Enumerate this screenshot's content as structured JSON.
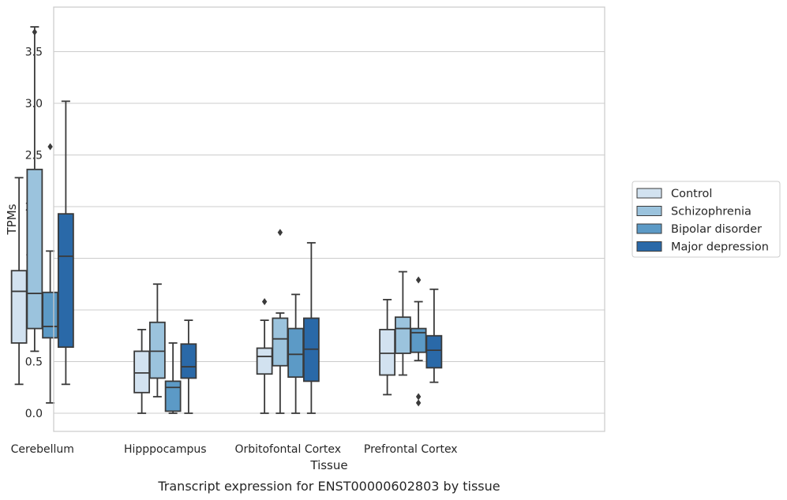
{
  "chart_data": {
    "type": "box",
    "xlabel": "Tissue",
    "ylabel": "TPMs",
    "caption": "Transcript expression for ENST00000602803 by tissue",
    "ylim": [
      -0.18,
      3.9
    ],
    "yticks": [
      "0.0",
      "0.5",
      "1.0",
      "1.5",
      "2.0",
      "2.5",
      "3.0",
      "3.5"
    ],
    "grid": "horizontal",
    "legend_position": "right",
    "categories": [
      "Cerebellum",
      "Hipppocampus",
      "Orbitofontal Cortex",
      "Prefrontal Cortex"
    ],
    "series": [
      {
        "name": "Control",
        "color": "#d2e2f0",
        "boxes": [
          {
            "whislo": 0.28,
            "q1": 0.68,
            "med": 1.18,
            "q3": 1.38,
            "whishi": 2.28,
            "fliers": []
          },
          {
            "whislo": 0.0,
            "q1": 0.2,
            "med": 0.39,
            "q3": 0.6,
            "whishi": 0.81,
            "fliers": []
          },
          {
            "whislo": 0.0,
            "q1": 0.38,
            "med": 0.55,
            "q3": 0.63,
            "whishi": 0.9,
            "fliers": [
              1.08
            ]
          },
          {
            "whislo": 0.18,
            "q1": 0.37,
            "med": 0.58,
            "q3": 0.81,
            "whishi": 1.1,
            "fliers": []
          }
        ]
      },
      {
        "name": "Schizophrenia",
        "color": "#9bc3dd",
        "boxes": [
          {
            "whislo": 0.6,
            "q1": 0.82,
            "med": 1.16,
            "q3": 2.36,
            "whishi": 3.74,
            "fliers": [
              3.69
            ]
          },
          {
            "whislo": 0.16,
            "q1": 0.34,
            "med": 0.6,
            "q3": 0.88,
            "whishi": 1.25,
            "fliers": []
          },
          {
            "whislo": 0.0,
            "q1": 0.46,
            "med": 0.72,
            "q3": 0.92,
            "whishi": 0.97,
            "fliers": [
              1.75
            ]
          },
          {
            "whislo": 0.37,
            "q1": 0.58,
            "med": 0.82,
            "q3": 0.93,
            "whishi": 1.37,
            "fliers": []
          }
        ]
      },
      {
        "name": "Bipolar disorder",
        "color": "#5c9ac6",
        "boxes": [
          {
            "whislo": 0.1,
            "q1": 0.73,
            "med": 0.84,
            "q3": 1.17,
            "whishi": 1.57,
            "fliers": [
              2.58
            ]
          },
          {
            "whislo": 0.0,
            "q1": 0.02,
            "med": 0.25,
            "q3": 0.31,
            "whishi": 0.68,
            "fliers": []
          },
          {
            "whislo": 0.0,
            "q1": 0.35,
            "med": 0.57,
            "q3": 0.82,
            "whishi": 1.15,
            "fliers": []
          },
          {
            "whislo": 0.51,
            "q1": 0.59,
            "med": 0.78,
            "q3": 0.82,
            "whishi": 1.08,
            "fliers": [
              1.29,
              0.16,
              0.1
            ]
          }
        ]
      },
      {
        "name": "Major depression",
        "color": "#2a69a8",
        "boxes": [
          {
            "whislo": 0.28,
            "q1": 0.64,
            "med": 1.52,
            "q3": 1.93,
            "whishi": 3.02,
            "fliers": []
          },
          {
            "whislo": 0.0,
            "q1": 0.34,
            "med": 0.45,
            "q3": 0.67,
            "whishi": 0.9,
            "fliers": []
          },
          {
            "whislo": 0.0,
            "q1": 0.31,
            "med": 0.62,
            "q3": 0.92,
            "whishi": 1.65,
            "fliers": []
          },
          {
            "whislo": 0.3,
            "q1": 0.44,
            "med": 0.61,
            "q3": 0.75,
            "whishi": 1.2,
            "fliers": []
          }
        ]
      }
    ]
  }
}
